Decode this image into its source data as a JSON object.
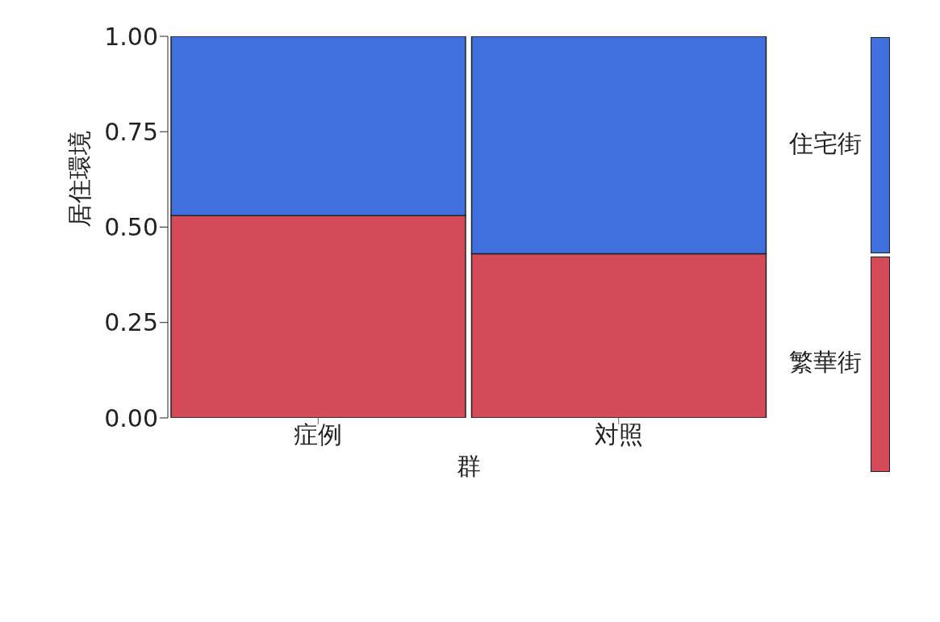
{
  "chart_data": {
    "type": "bar",
    "stacked": true,
    "xlabel": "群",
    "ylabel": "居住環境",
    "categories": [
      "症例",
      "対照"
    ],
    "series": [
      {
        "name": "繁華街",
        "color": "#d44a58",
        "values": [
          0.53,
          0.43
        ]
      },
      {
        "name": "住宅街",
        "color": "#4070dd",
        "values": [
          0.47,
          0.57
        ]
      }
    ],
    "ylim": [
      0,
      1
    ],
    "yticks": [
      {
        "value": 0,
        "label": "0.00"
      },
      {
        "value": 0.25,
        "label": "0.25"
      },
      {
        "value": 0.5,
        "label": "0.50"
      },
      {
        "value": 0.75,
        "label": "0.75"
      },
      {
        "value": 1,
        "label": "1.00"
      }
    ],
    "legend": "right"
  }
}
